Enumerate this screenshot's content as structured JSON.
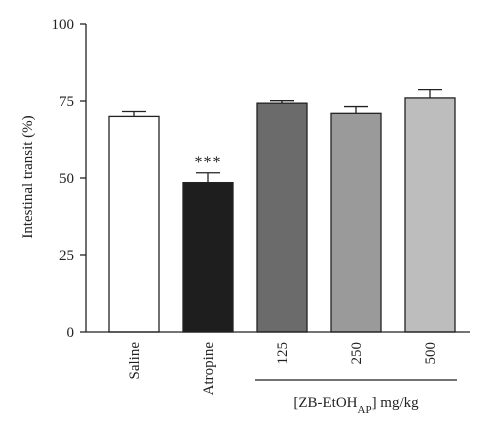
{
  "chart_data": {
    "type": "bar",
    "ylabel": "Intestinal transit (%)",
    "ylim": [
      0,
      100
    ],
    "yticks": [
      0,
      25,
      50,
      75,
      100
    ],
    "categories": [
      "Saline",
      "Atropine",
      "125",
      "250",
      "500"
    ],
    "values": [
      70,
      48.5,
      74.3,
      71,
      76
    ],
    "errors": [
      1.6,
      3.2,
      0.8,
      2.2,
      2.7
    ],
    "bar_colors": [
      "#ffffff",
      "#1e1e1e",
      "#6b6b6b",
      "#9a9a9a",
      "#bdbdbd"
    ],
    "annotations": [
      {
        "category": "Atropine",
        "text": "***"
      }
    ],
    "group_bracket": {
      "categories": [
        "125",
        "250",
        "500"
      ],
      "label_main": "[ZB-EtOH",
      "label_sub": "AP",
      "label_tail": "] mg/kg"
    },
    "grid": false
  }
}
